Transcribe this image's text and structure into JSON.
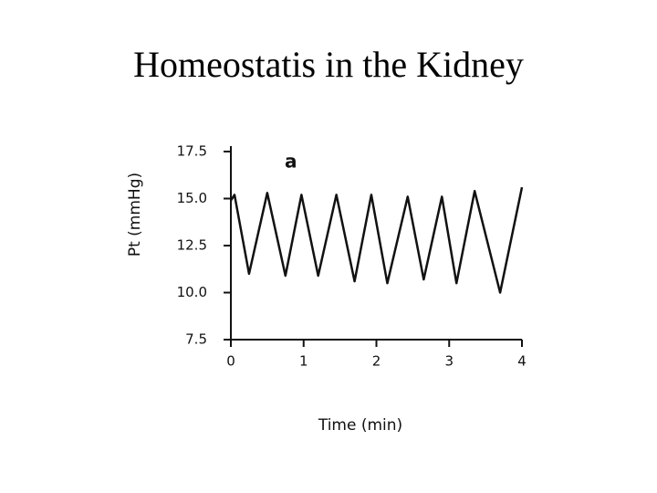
{
  "title": "Homeostatis in the Kidney",
  "chart_data": {
    "type": "line",
    "annotation": "a",
    "x_label": "Time (min)",
    "y_label": "Pt (mmHg)",
    "x": [
      0,
      0.05,
      0.25,
      0.5,
      0.75,
      0.97,
      1.2,
      1.45,
      1.7,
      1.93,
      2.15,
      2.43,
      2.65,
      2.9,
      3.1,
      3.35,
      3.7,
      4.0
    ],
    "series": [
      {
        "color": "#111111",
        "values": [
          14.9,
          15.2,
          11.0,
          15.3,
          10.9,
          15.2,
          10.9,
          15.2,
          10.6,
          15.2,
          10.5,
          15.1,
          10.7,
          15.1,
          10.5,
          15.4,
          10.0,
          15.6
        ]
      }
    ],
    "xlim": [
      0,
      4
    ],
    "xticks": [
      0,
      1,
      2,
      3,
      4
    ],
    "ylim": [
      7.5,
      17.5
    ],
    "yticks": [
      7.5,
      {
        "value": 10,
        "label": "10.0"
      },
      12.5,
      {
        "value": 15,
        "label": "15.0"
      },
      17.5
    ]
  }
}
